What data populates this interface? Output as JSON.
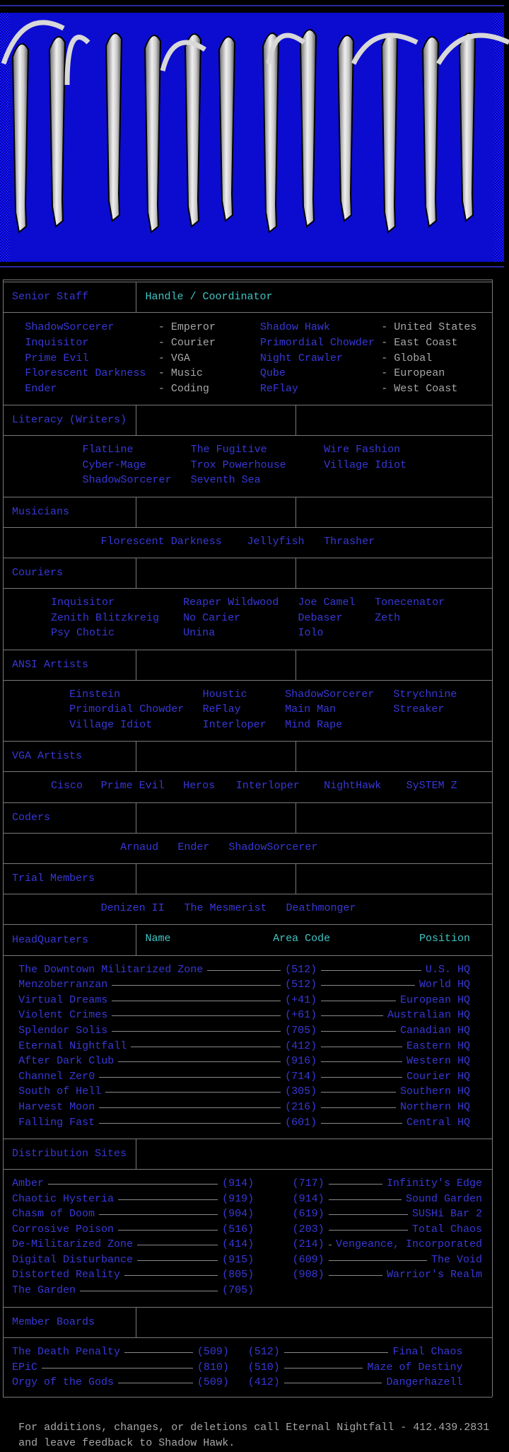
{
  "staff": {
    "title": "Senior Staff",
    "header": "Handle / Coordinator",
    "rows": [
      [
        "ShadowSorcerer",
        "- Emperor",
        "Shadow Hawk",
        "- United States"
      ],
      [
        "Inquisitor",
        "- Courier",
        "Primordial Chowder",
        "- East Coast"
      ],
      [
        "Prime Evil",
        "- VGA",
        "Night Crawler",
        "- Global"
      ],
      [
        "Florescent Darkness",
        "- Music",
        "Qube",
        "- European"
      ],
      [
        "Ender",
        "- Coding",
        "ReFlay",
        "- West Coast"
      ]
    ]
  },
  "groups": [
    {
      "title": "Literacy (Writers)",
      "rows": [
        [
          "FlatLine",
          "The Fugitive",
          "Wire Fashion"
        ],
        [
          "Cyber-Mage",
          "Trox Powerhouse",
          "Village Idiot"
        ],
        [
          "ShadowSorcerer",
          "Seventh Sea"
        ]
      ]
    },
    {
      "title": "Musicians",
      "rows": [
        [
          "Florescent Darkness",
          "Jellyfish",
          "Thrasher"
        ]
      ]
    },
    {
      "title": "Couriers",
      "rows": [
        [
          "Inquisitor",
          "Reaper Wildwood",
          "Joe Camel",
          "Tonecenator"
        ],
        [
          "Zenith Blitzkreig",
          "No Carier",
          "Debaser",
          "Zeth"
        ],
        [
          "Psy Chotic",
          "Unina",
          "Iolo"
        ]
      ]
    },
    {
      "title": "ANSI Artists",
      "rows": [
        [
          "Einstein",
          "Houstic",
          "ShadowSorcerer",
          "Strychnine"
        ],
        [
          "Primordial Chowder",
          "ReFlay",
          "Main Man",
          "Streaker"
        ],
        [
          "Village Idiot",
          "Interloper",
          "Mind Rape"
        ]
      ]
    },
    {
      "title": "VGA Artists",
      "rows": [
        [
          "Cisco",
          "Prime Evil",
          "Heros",
          "Interloper",
          "NightHawk",
          "SySTEM Z"
        ]
      ]
    },
    {
      "title": "Coders",
      "rows": [
        [
          "Arnaud",
          "Ender",
          "ShadowSorcerer"
        ]
      ]
    },
    {
      "title": "Trial Members",
      "rows": [
        [
          "Denizen II",
          "The Mesmerist",
          "Deathmonger"
        ]
      ]
    }
  ],
  "headquarters": {
    "title": "HeadQuarters",
    "columns": [
      "Name",
      "Area Code",
      "Position"
    ],
    "rows": [
      [
        "The Downtown Militarized Zone",
        "(512)",
        "U.S. HQ"
      ],
      [
        "Menzoberranzan",
        "(512)",
        "World HQ"
      ],
      [
        "Virtual Dreams",
        "(+41)",
        "European HQ"
      ],
      [
        "Violent Crimes",
        "(+61)",
        "Australian HQ"
      ],
      [
        "Splendor Solis",
        "(705)",
        "Canadian HQ"
      ],
      [
        "Eternal Nightfall",
        "(412)",
        "Eastern HQ"
      ],
      [
        "After Dark Club",
        "(916)",
        "Western HQ"
      ],
      [
        "Channel Zer0",
        "(714)",
        "Courier HQ"
      ],
      [
        "South of Hell",
        "(305)",
        "Southern HQ"
      ],
      [
        "Harvest Moon",
        "(216)",
        "Northern HQ"
      ],
      [
        "Falling Fast",
        "(601)",
        "Central HQ"
      ]
    ]
  },
  "distribution": {
    "title": "Distribution Sites",
    "left": [
      [
        "Amber",
        "(914)"
      ],
      [
        "Chaotic Hysteria",
        "(919)"
      ],
      [
        "Chasm of Doom",
        "(904)"
      ],
      [
        "Corrosive Poison",
        "(516)"
      ],
      [
        "De-Militarized Zone",
        "(414)"
      ],
      [
        "Digital Disturbance",
        "(915)"
      ],
      [
        "Distorted Reality",
        "(805)"
      ],
      [
        "The Garden",
        "(705)"
      ]
    ],
    "right": [
      [
        "(717)",
        "Infinity's Edge"
      ],
      [
        "(914)",
        "Sound Garden"
      ],
      [
        "(619)",
        "SUSHi Bar 2"
      ],
      [
        "(203)",
        "Total Chaos"
      ],
      [
        "(214)",
        "Vengeance, Incorporated"
      ],
      [
        "(609)",
        "The Void"
      ],
      [
        "(908)",
        "Warrior's Realm"
      ]
    ]
  },
  "member_boards": {
    "title": "Member Boards",
    "rows": [
      [
        "The Death Penalty",
        "(509)",
        "(512)",
        "Final Chaos"
      ],
      [
        "EPiC",
        "(810)",
        "(510)",
        "Maze of Destiny"
      ],
      [
        "Orgy of the Gods",
        "(509)",
        "(412)",
        "Dangerhazell"
      ]
    ]
  },
  "footer": [
    "For additions, changes, or deletions call Eternal Nightfall - 412.439.2831",
    "and leave feedback to Shadow Hawk."
  ]
}
